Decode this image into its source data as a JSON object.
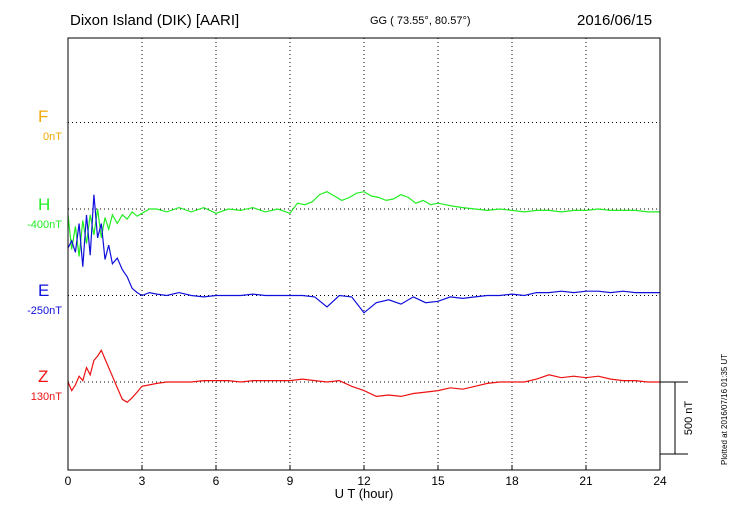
{
  "header": {
    "station": "Dixon Island (DIK)  [AARI]",
    "coords": "GG ( 73.55°,  80.57°)",
    "date": "2016/06/15"
  },
  "plotted_note": "Plotted at 2016/07/16 01:35 UT",
  "chart_data": {
    "type": "line",
    "title": "",
    "xlabel": "U T (hour)",
    "ylabel": "",
    "xlim": [
      0,
      24
    ],
    "x_ticks": [
      0,
      3,
      6,
      9,
      12,
      15,
      18,
      21,
      24
    ],
    "grid": true,
    "scale_bar": {
      "label": "500 nT",
      "value_nT": 500
    },
    "channels": [
      {
        "name": "F",
        "offset_label": "0nT",
        "color": "#f0a800",
        "level": 3.0
      },
      {
        "name": "H",
        "offset_label": "-400nT",
        "color": "#22ee22",
        "level": 2.0
      },
      {
        "name": "E",
        "offset_label": "-250nT",
        "color": "#1010dd",
        "level": 1.0
      },
      {
        "name": "Z",
        "offset_label": "130nT",
        "color": "#ee1111",
        "level": 0.0
      }
    ],
    "series": [
      {
        "name": "H",
        "color": "#22ee22",
        "x": [
          0,
          0.15,
          0.3,
          0.45,
          0.6,
          0.75,
          0.9,
          1.05,
          1.2,
          1.35,
          1.5,
          1.65,
          1.8,
          2.0,
          2.2,
          2.4,
          2.6,
          2.8,
          3.0,
          3.3,
          3.6,
          4.0,
          4.5,
          5.0,
          5.5,
          6.0,
          6.5,
          7.0,
          7.5,
          8.0,
          8.5,
          9.0,
          9.3,
          9.6,
          9.9,
          10.2,
          10.5,
          10.8,
          11.1,
          11.4,
          11.7,
          12.0,
          12.3,
          12.6,
          12.9,
          13.2,
          13.5,
          13.8,
          14.1,
          14.4,
          14.7,
          15.0,
          15.3,
          15.6,
          16.0,
          16.5,
          17.0,
          17.5,
          18.0,
          18.5,
          19.0,
          19.5,
          20.0,
          20.5,
          21.0,
          21.5,
          22.0,
          22.5,
          23.0,
          23.5,
          24.0
        ],
        "y": [
          -40,
          -280,
          -120,
          -330,
          -80,
          -240,
          -40,
          -180,
          0,
          -200,
          -60,
          -140,
          -40,
          -100,
          -40,
          -70,
          -20,
          -50,
          -30,
          0,
          0,
          -20,
          10,
          -20,
          10,
          -30,
          0,
          -10,
          10,
          -20,
          0,
          -30,
          40,
          30,
          50,
          100,
          120,
          90,
          60,
          80,
          110,
          120,
          90,
          80,
          60,
          70,
          100,
          80,
          40,
          60,
          30,
          40,
          30,
          20,
          10,
          0,
          -10,
          0,
          -10,
          -20,
          -10,
          -10,
          -20,
          -10,
          -10,
          0,
          -10,
          -10,
          -10,
          -20,
          -20
        ]
      },
      {
        "name": "E",
        "color": "#1010dd",
        "x": [
          0,
          0.15,
          0.3,
          0.45,
          0.6,
          0.75,
          0.9,
          1.05,
          1.2,
          1.35,
          1.5,
          1.65,
          1.8,
          2.0,
          2.2,
          2.4,
          2.6,
          2.8,
          3.0,
          3.3,
          3.6,
          4.0,
          4.5,
          5.0,
          5.5,
          6.0,
          6.5,
          7.0,
          7.5,
          8.0,
          8.5,
          9.0,
          9.5,
          10.0,
          10.5,
          11.0,
          11.5,
          12.0,
          12.5,
          13.0,
          13.5,
          14.0,
          14.5,
          15.0,
          15.5,
          16.0,
          16.5,
          17.0,
          17.5,
          18.0,
          18.5,
          19.0,
          19.5,
          20.0,
          20.5,
          21.0,
          21.5,
          22.0,
          22.5,
          23.0,
          23.5,
          24.0
        ],
        "y": [
          330,
          380,
          300,
          500,
          200,
          560,
          280,
          700,
          400,
          500,
          250,
          350,
          220,
          260,
          180,
          130,
          50,
          20,
          0,
          20,
          10,
          0,
          20,
          0,
          -10,
          0,
          0,
          0,
          10,
          0,
          0,
          0,
          0,
          -10,
          -80,
          0,
          -10,
          -120,
          -50,
          -30,
          -60,
          -10,
          -50,
          -40,
          -10,
          -20,
          -10,
          0,
          0,
          10,
          0,
          20,
          20,
          30,
          20,
          30,
          30,
          20,
          30,
          20,
          20,
          20
        ]
      },
      {
        "name": "Z",
        "color": "#ee1111",
        "x": [
          0,
          0.15,
          0.3,
          0.45,
          0.6,
          0.75,
          0.9,
          1.05,
          1.2,
          1.35,
          1.5,
          1.65,
          1.8,
          2.0,
          2.2,
          2.4,
          2.6,
          2.8,
          3.0,
          3.3,
          3.6,
          4.0,
          4.5,
          5.0,
          5.5,
          6.0,
          6.5,
          7.0,
          7.5,
          8.0,
          8.5,
          9.0,
          9.5,
          10.0,
          10.5,
          11.0,
          11.5,
          12.0,
          12.5,
          13.0,
          13.5,
          14.0,
          14.5,
          15.0,
          15.5,
          16.0,
          16.5,
          17.0,
          17.5,
          18.0,
          18.5,
          19.0,
          19.5,
          20.0,
          20.5,
          21.0,
          21.5,
          22.0,
          22.5,
          23.0,
          23.5,
          24.0
        ],
        "y": [
          0,
          -60,
          -20,
          40,
          10,
          100,
          50,
          150,
          180,
          220,
          160,
          100,
          40,
          -40,
          -120,
          -140,
          -110,
          -70,
          -30,
          -20,
          -10,
          0,
          0,
          0,
          10,
          10,
          10,
          0,
          10,
          10,
          10,
          10,
          20,
          10,
          0,
          10,
          -30,
          -60,
          -100,
          -90,
          -100,
          -80,
          -70,
          -60,
          -40,
          -50,
          -30,
          -10,
          0,
          0,
          0,
          20,
          50,
          30,
          40,
          30,
          40,
          20,
          10,
          10,
          0,
          0
        ]
      }
    ]
  }
}
